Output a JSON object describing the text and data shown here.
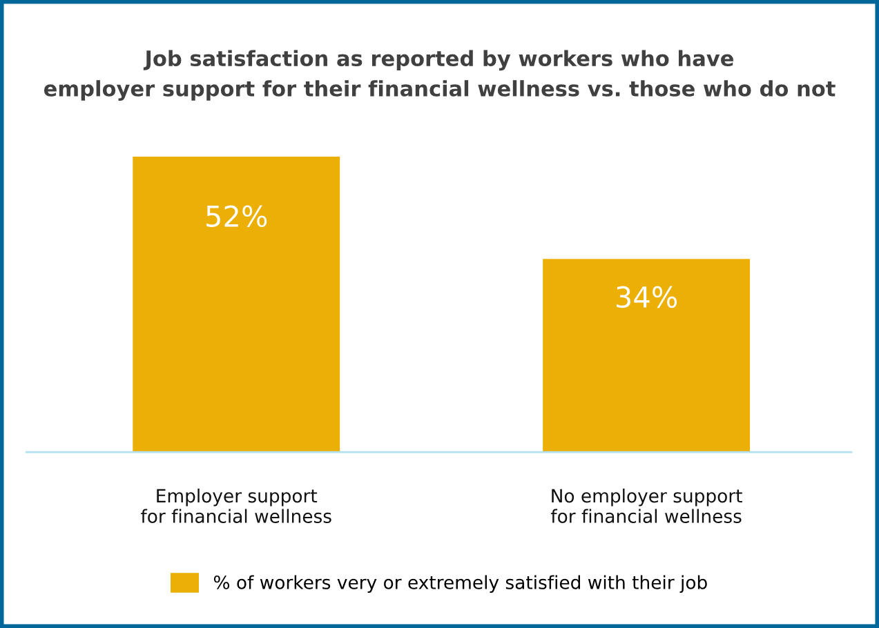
{
  "chart_data": {
    "type": "bar",
    "title": "Job satisfaction as reported by workers who have\nemployer support for their financial wellness vs. those who do not",
    "categories": [
      "Employer support\nfor financial wellness",
      "No employer support\nfor financial wellness"
    ],
    "series": [
      {
        "name": "% of workers very or extremely satisfied with their job",
        "color": "#ebaf05",
        "values": [
          52,
          34
        ],
        "value_labels": [
          "52%",
          "34%"
        ]
      }
    ],
    "legend": "bottom",
    "grid": false
  }
}
